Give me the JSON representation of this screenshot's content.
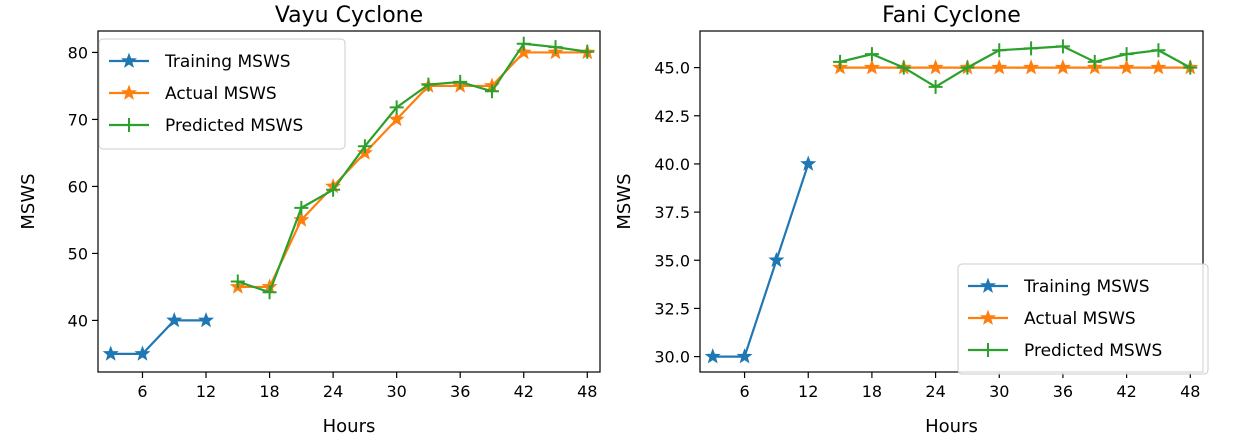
{
  "chart_data": [
    {
      "type": "line",
      "title": "Vayu Cyclone",
      "xlabel": "Hours",
      "ylabel": "MSWS",
      "xlim": [
        1.8,
        49.2
      ],
      "ylim": [
        32.3,
        83.2
      ],
      "xticks": [
        "6",
        "12",
        "18",
        "24",
        "30",
        "36",
        "42",
        "48"
      ],
      "yticks": [
        "40",
        "50",
        "60",
        "70",
        "80"
      ],
      "grid": false,
      "legend": "top-left",
      "series": [
        {
          "name": "Training MSWS",
          "color": "#1f77b4",
          "marker": "star",
          "x": [
            3,
            6,
            9,
            12
          ],
          "y": [
            35,
            35,
            40,
            40
          ]
        },
        {
          "name": "Actual MSWS",
          "color": "#ff7f0e",
          "marker": "star",
          "x": [
            15,
            18,
            21,
            24,
            27,
            30,
            33,
            36,
            39,
            42,
            45,
            48
          ],
          "y": [
            45,
            45,
            55,
            60,
            65,
            70,
            75,
            75,
            75,
            80,
            80,
            80
          ]
        },
        {
          "name": "Predicted MSWS",
          "color": "#2ca02c",
          "marker": "plus",
          "x": [
            15,
            18,
            21,
            24,
            27,
            30,
            33,
            36,
            39,
            42,
            45,
            48
          ],
          "y": [
            45.8,
            44.2,
            56.8,
            59.5,
            66,
            71.8,
            75.2,
            75.6,
            74.2,
            81.3,
            80.8,
            80.1
          ]
        }
      ]
    },
    {
      "type": "line",
      "title": "Fani Cyclone",
      "xlabel": "Hours",
      "ylabel": "MSWS",
      "xlim": [
        1.8,
        49.2
      ],
      "ylim": [
        29.2,
        46.9
      ],
      "xticks": [
        "6",
        "12",
        "18",
        "24",
        "30",
        "36",
        "42",
        "48"
      ],
      "yticks": [
        "30.0",
        "32.5",
        "35.0",
        "37.5",
        "40.0",
        "42.5",
        "45.0"
      ],
      "grid": false,
      "legend": "bottom-right",
      "series": [
        {
          "name": "Training MSWS",
          "color": "#1f77b4",
          "marker": "star",
          "x": [
            3,
            6,
            9,
            12
          ],
          "y": [
            30,
            30,
            35,
            40
          ]
        },
        {
          "name": "Actual MSWS",
          "color": "#ff7f0e",
          "marker": "star",
          "x": [
            15,
            18,
            21,
            24,
            27,
            30,
            33,
            36,
            39,
            42,
            45,
            48
          ],
          "y": [
            45,
            45,
            45,
            45,
            45,
            45,
            45,
            45,
            45,
            45,
            45,
            45
          ]
        },
        {
          "name": "Predicted MSWS",
          "color": "#2ca02c",
          "marker": "plus",
          "x": [
            15,
            18,
            21,
            24,
            27,
            30,
            33,
            36,
            39,
            42,
            45,
            48
          ],
          "y": [
            45.3,
            45.7,
            45,
            44,
            45,
            45.9,
            46,
            46.1,
            45.3,
            45.7,
            45.9,
            45
          ]
        }
      ]
    }
  ]
}
